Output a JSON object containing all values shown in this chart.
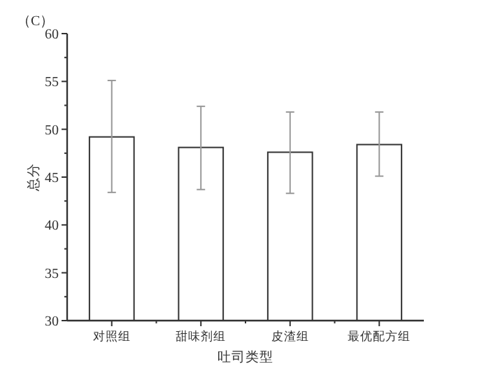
{
  "chart_data": {
    "type": "bar",
    "title": "（C）",
    "xlabel": "吐司类型",
    "ylabel": "总分",
    "categories": [
      "对照组",
      "甜味剂组",
      "皮渣组",
      "最优配方组"
    ],
    "values": [
      49.2,
      48.1,
      47.6,
      48.4
    ],
    "errors": [
      [
        43.4,
        55.1
      ],
      [
        43.7,
        52.4
      ],
      [
        43.3,
        51.8
      ],
      [
        45.1,
        51.8
      ]
    ],
    "color": "#ffffff",
    "ylim": [
      30,
      60
    ],
    "yticks": [
      30,
      35,
      40,
      45,
      50,
      55,
      60
    ],
    "grid": false
  }
}
